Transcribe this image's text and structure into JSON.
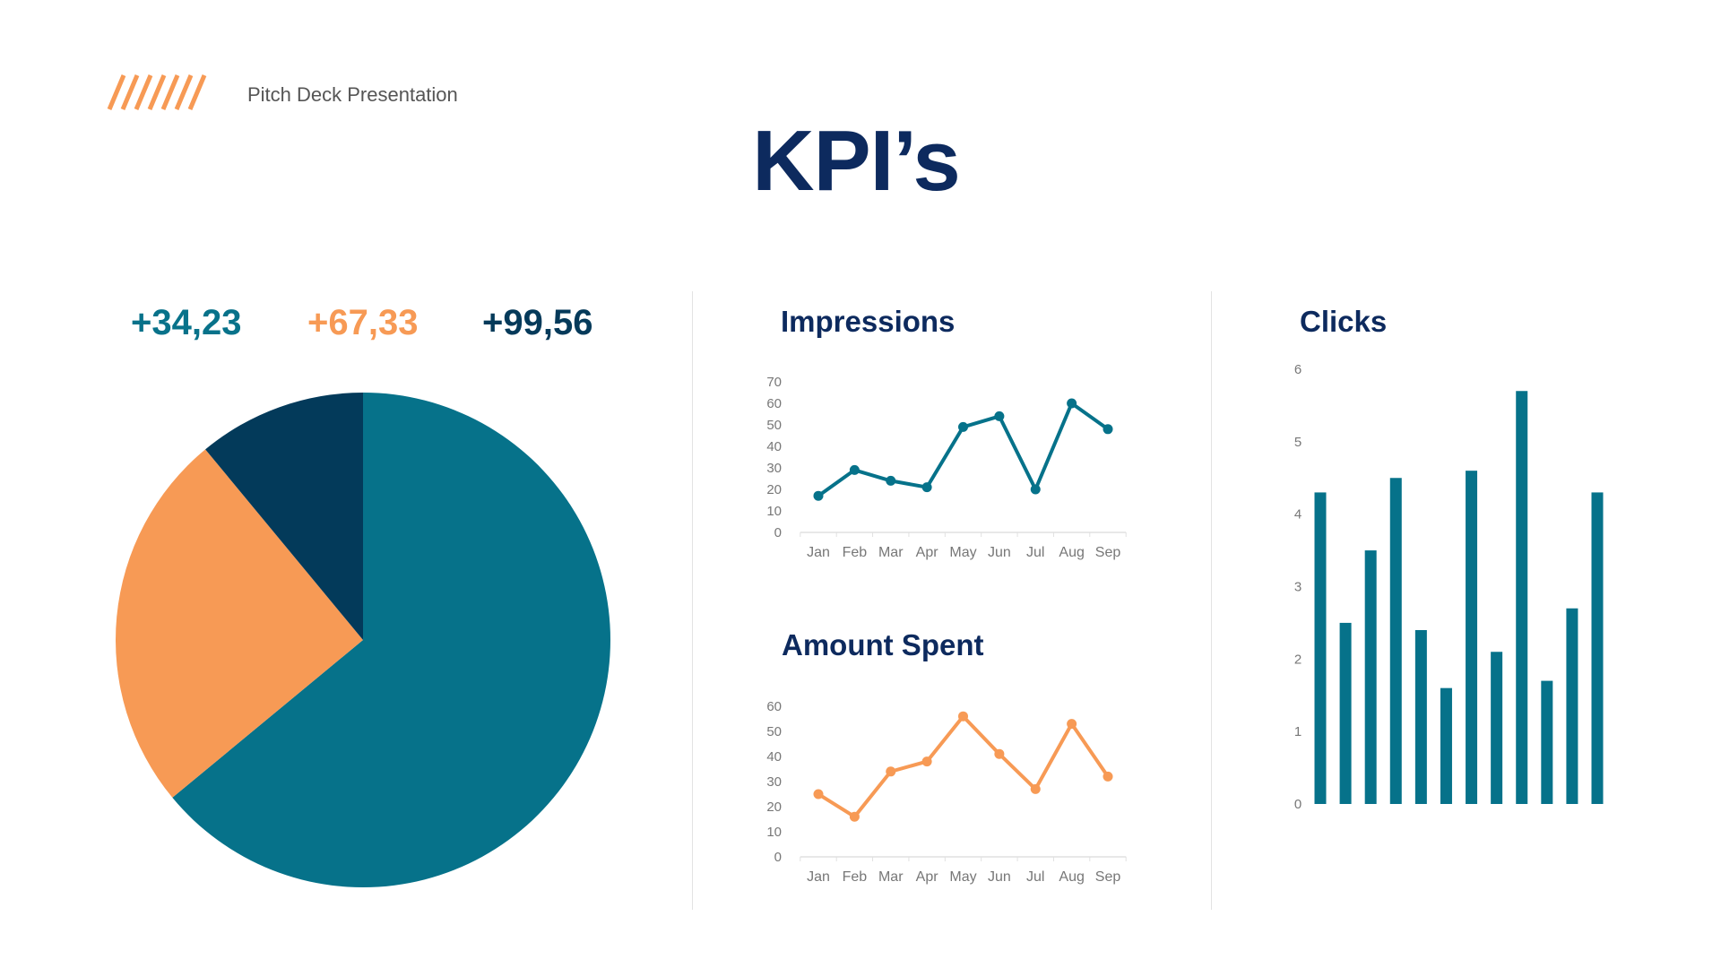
{
  "header": {
    "subtitle": "Pitch Deck Presentation",
    "title": "KPI’s",
    "logo_icon": "diagonal-stripes-icon"
  },
  "kpis": [
    {
      "value": "+34,23",
      "color": "#08728a"
    },
    {
      "value": "+67,33",
      "color": "#f79a55"
    },
    {
      "value": "+99,56",
      "color": "#053a5a"
    }
  ],
  "colors": {
    "teal": "#06728a",
    "orange": "#f79a55",
    "navy": "#033a5a",
    "title": "#0d2a5e"
  },
  "chart_data": [
    {
      "type": "pie",
      "values": [
        64,
        25,
        11
      ],
      "colors": [
        "#06728a",
        "#f79a55",
        "#033a5a"
      ],
      "start": "top",
      "direction": "clockwise"
    },
    {
      "type": "line",
      "title": "Impressions",
      "categories": [
        "Jan",
        "Feb",
        "Mar",
        "Apr",
        "May",
        "Jun",
        "Jul",
        "Aug",
        "Sep"
      ],
      "values": [
        17,
        29,
        24,
        21,
        49,
        54,
        20,
        60,
        48
      ],
      "ylim": [
        0,
        70
      ],
      "yticks": [
        0,
        10,
        20,
        30,
        40,
        50,
        60,
        70
      ],
      "color": "#06728a",
      "grid": false
    },
    {
      "type": "line",
      "title": "Amount Spent",
      "categories": [
        "Jan",
        "Feb",
        "Mar",
        "Apr",
        "May",
        "Jun",
        "Jul",
        "Aug",
        "Sep"
      ],
      "values": [
        25,
        16,
        34,
        38,
        56,
        41,
        27,
        53,
        32
      ],
      "ylim": [
        0,
        60
      ],
      "yticks": [
        0,
        10,
        20,
        30,
        40,
        50,
        60
      ],
      "color": "#f79a55",
      "grid": false
    },
    {
      "type": "bar",
      "title": "Clicks",
      "values": [
        4.3,
        2.5,
        3.5,
        4.5,
        2.4,
        1.6,
        4.6,
        2.1,
        5.7,
        1.7,
        2.7,
        4.3
      ],
      "ylim": [
        0,
        6
      ],
      "yticks": [
        0,
        1,
        2,
        3,
        4,
        5,
        6
      ],
      "color": "#06728a",
      "grid": false
    }
  ]
}
